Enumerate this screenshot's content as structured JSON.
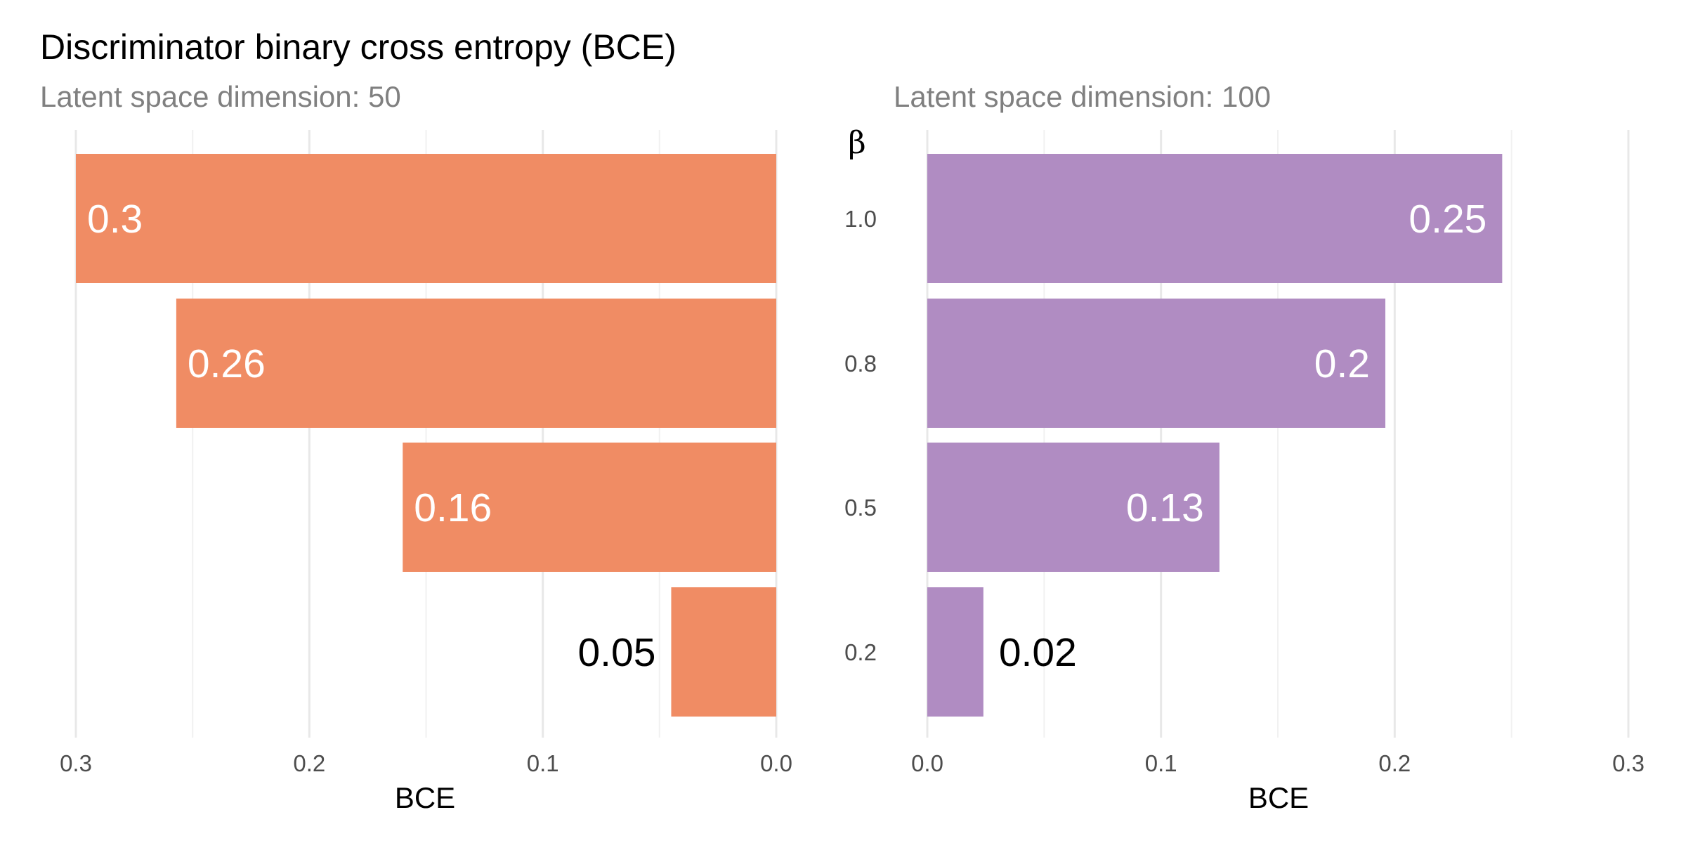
{
  "chart_data": {
    "type": "bar",
    "orientation": "horizontal",
    "title": "Discriminator binary cross entropy (BCE)",
    "y_axis_title": "β",
    "categories": [
      "1.0",
      "0.8",
      "0.5",
      "0.2"
    ],
    "panels": [
      {
        "subtitle": "Latent space dimension: 50",
        "xlabel": "BCE",
        "xlim": [
          0.3,
          0.0
        ],
        "x_reversed": true,
        "ticks": [
          0.3,
          0.2,
          0.1,
          0.0
        ],
        "tick_labels": [
          "0.3",
          "0.2",
          "0.1",
          "0.0"
        ],
        "color": "#F08C64",
        "values": [
          0.3,
          0.257,
          0.16,
          0.045
        ],
        "labels": [
          "0.3",
          "0.26",
          "0.16",
          "0.05"
        ]
      },
      {
        "subtitle": "Latent space dimension: 100",
        "xlabel": "BCE",
        "xlim": [
          0.0,
          0.3
        ],
        "x_reversed": false,
        "ticks": [
          0.0,
          0.1,
          0.2,
          0.3
        ],
        "tick_labels": [
          "0.0",
          "0.1",
          "0.2",
          "0.3"
        ],
        "color": "#B08CC2",
        "values": [
          0.246,
          0.196,
          0.125,
          0.024
        ],
        "labels": [
          "0.25",
          "0.2",
          "0.13",
          "0.02"
        ]
      }
    ],
    "grid": true,
    "legend": "none"
  }
}
